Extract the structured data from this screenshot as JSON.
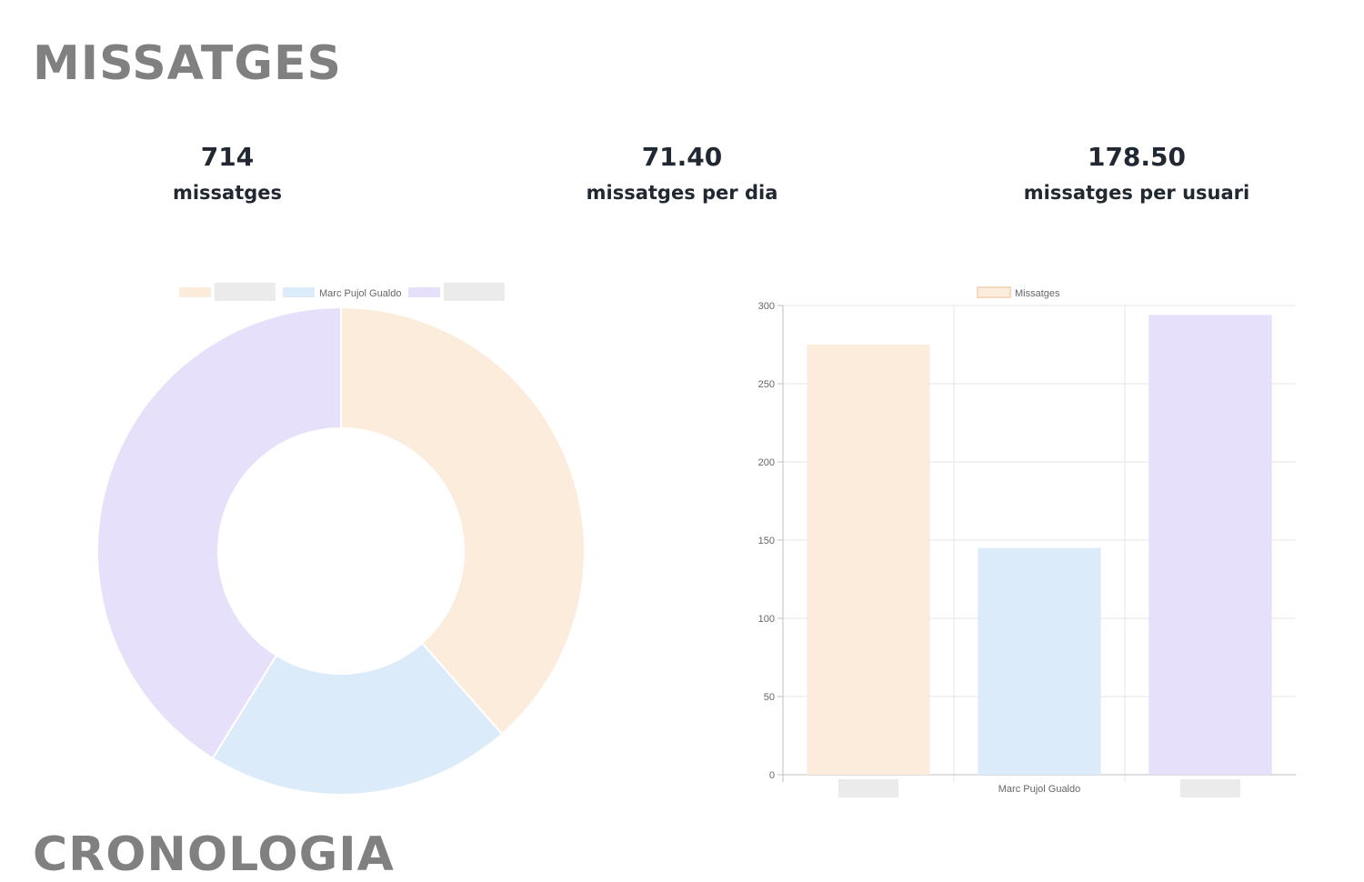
{
  "page": {
    "title": "MISSATGES",
    "next_section_title": "CRONOLOGIA"
  },
  "stats": [
    {
      "value": "714",
      "label": "missatges"
    },
    {
      "value": "71.40",
      "label": "missatges per dia"
    },
    {
      "value": "178.50",
      "label": "missatges per usuari"
    }
  ],
  "colors": {
    "slice1": "#fcecdc",
    "slice2": "#dcebfa",
    "slice3": "#e6e0fa",
    "redacted": "#ebebeb",
    "grid": "#e6e6e6",
    "axis": "#bfbfbf",
    "tick": "#666666"
  },
  "chart_data": [
    {
      "type": "pie",
      "variant": "doughnut",
      "labels": [
        "",
        "Marc Pujol Gualdo",
        ""
      ],
      "redacted": [
        true,
        false,
        true
      ],
      "values": [
        275,
        145,
        294
      ],
      "legend": "top"
    },
    {
      "type": "bar",
      "categories": [
        "",
        "Marc Pujol Gualdo",
        ""
      ],
      "redacted": [
        true,
        false,
        true
      ],
      "series": [
        {
          "name": "Missatges",
          "values": [
            275,
            145,
            294
          ]
        }
      ],
      "ylim": [
        0,
        300
      ],
      "yticks": [
        0,
        50,
        100,
        150,
        200,
        250,
        300
      ],
      "legend": "top",
      "grid": true,
      "title": "",
      "xlabel": "",
      "ylabel": ""
    }
  ]
}
